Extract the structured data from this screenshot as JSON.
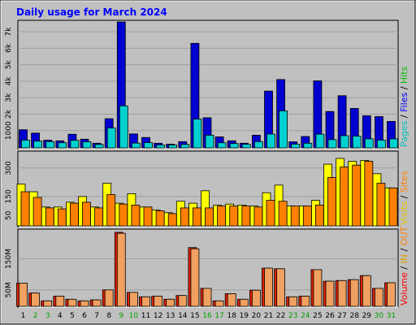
{
  "chart_data": [
    {
      "type": "bar",
      "title": "Daily usage for March 2024",
      "categories": [
        "1",
        "2",
        "3",
        "4",
        "5",
        "6",
        "7",
        "8",
        "9",
        "10",
        "11",
        "12",
        "13",
        "14",
        "15",
        "16",
        "17",
        "18",
        "19",
        "20",
        "21",
        "22",
        "23",
        "24",
        "25",
        "26",
        "27",
        "28",
        "29",
        "30",
        "31"
      ],
      "weekend_days": [
        "2",
        "3",
        "9",
        "10",
        "16",
        "17",
        "23",
        "24",
        "30",
        "31"
      ],
      "ylim": [
        0,
        7600
      ],
      "yticks": [
        "1000",
        "2k",
        "3k",
        "4k",
        "5k",
        "6k",
        "7k"
      ],
      "ytick_values": [
        1000,
        2000,
        3000,
        4000,
        5000,
        6000,
        7000
      ],
      "legend_parts": [
        "Pages",
        " / ",
        "Files",
        " / ",
        "Hits"
      ],
      "series": [
        {
          "name": "Hits",
          "color": "#00c0ff",
          "values": [
            0,
            0,
            0,
            0,
            0,
            0,
            0,
            0,
            0,
            0,
            0,
            0,
            0,
            0,
            0,
            0,
            0,
            0,
            0,
            0,
            0,
            0,
            0,
            0,
            0,
            0,
            0,
            0,
            0,
            0,
            0
          ]
        },
        {
          "name": "Files",
          "color": "#0000d0",
          "values": [
            1050,
            850,
            420,
            380,
            780,
            480,
            230,
            1720,
            7600,
            800,
            580,
            230,
            180,
            330,
            6300,
            1780,
            620,
            380,
            230,
            720,
            3400,
            4100,
            320,
            640,
            4020,
            2160,
            3120,
            2350,
            1900,
            1850,
            1560
          ]
        },
        {
          "name": "Pages",
          "color": "#00d0d0",
          "values": [
            420,
            360,
            330,
            260,
            410,
            320,
            160,
            1160,
            2500,
            240,
            270,
            130,
            130,
            160,
            1700,
            720,
            260,
            210,
            170,
            330,
            790,
            2200,
            180,
            230,
            780,
            450,
            690,
            660,
            500,
            420,
            500
          ]
        }
      ]
    },
    {
      "type": "bar",
      "ylim": [
        0,
        380
      ],
      "yticks": [
        "50",
        "150",
        "300"
      ],
      "ytick_values": [
        50,
        150,
        300
      ],
      "legend_parts": [
        "Visits",
        " / ",
        "Sites"
      ],
      "series": [
        {
          "name": "Visits",
          "color": "#ffff00",
          "values": [
            215,
            175,
            95,
            95,
            120,
            150,
            95,
            220,
            115,
            165,
            95,
            80,
            65,
            125,
            115,
            180,
            105,
            110,
            105,
            100,
            170,
            210,
            100,
            100,
            130,
            320,
            350,
            335,
            340,
            270,
            195
          ]
        },
        {
          "name": "Sites",
          "color": "#ff8000",
          "values": [
            175,
            145,
            90,
            85,
            115,
            120,
            90,
            160,
            110,
            105,
            95,
            75,
            60,
            90,
            90,
            90,
            100,
            100,
            100,
            95,
            130,
            125,
            100,
            100,
            105,
            250,
            305,
            315,
            335,
            220,
            195
          ]
        }
      ]
    },
    {
      "type": "bar",
      "ylim": [
        0,
        240
      ],
      "yticks": [
        "50M",
        "150M"
      ],
      "ytick_values": [
        50,
        150
      ],
      "legend_parts": [
        "Volume",
        " / ",
        "IN",
        " / ",
        "OUT"
      ],
      "series": [
        {
          "name": "Volume",
          "color": "#e02000",
          "values": [
            72,
            40,
            15,
            30,
            20,
            15,
            18,
            50,
            235,
            42,
            28,
            30,
            20,
            32,
            186,
            55,
            15,
            38,
            20,
            49,
            120,
            118,
            28,
            30,
            115,
            78,
            80,
            83,
            96,
            55,
            73
          ]
        },
        {
          "name": "OUT",
          "color": "#f0a060",
          "values": [
            72,
            40,
            15,
            30,
            20,
            15,
            18,
            50,
            232,
            42,
            28,
            30,
            20,
            32,
            182,
            55,
            15,
            38,
            20,
            49,
            120,
            118,
            28,
            30,
            115,
            78,
            80,
            83,
            96,
            55,
            73
          ]
        },
        {
          "name": "IN",
          "color": "#ff8000",
          "values": [
            0,
            0,
            0,
            0,
            0,
            0,
            0,
            0,
            0,
            0,
            0,
            0,
            0,
            0,
            0,
            0,
            0,
            0,
            0,
            0,
            0,
            0,
            0,
            0,
            0,
            0,
            0,
            0,
            0,
            0,
            0
          ]
        }
      ]
    }
  ]
}
